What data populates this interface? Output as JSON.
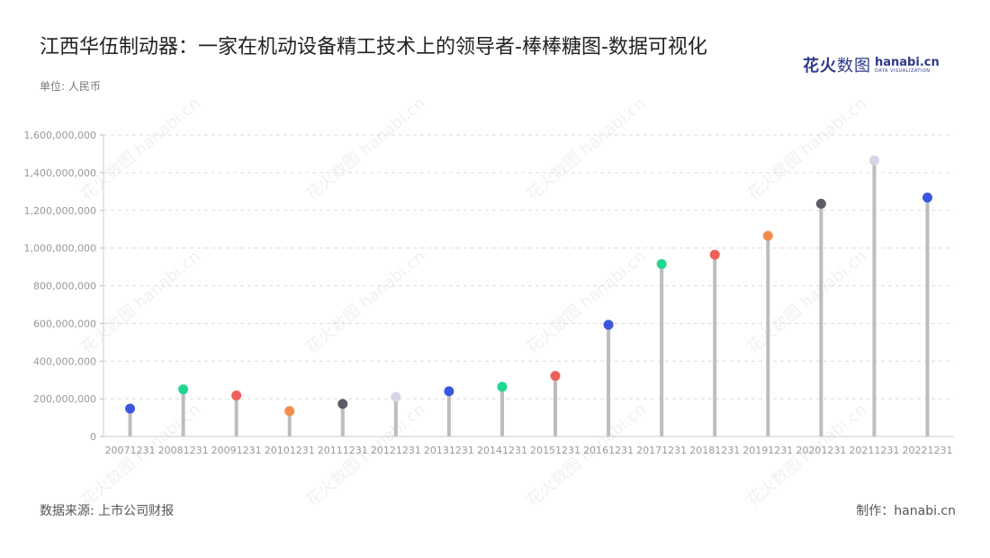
{
  "title": "江西华伍制动器：一家在机动设备精工技术上的领导者-棒棒糖图-数据可视化",
  "unit_label": "单位: 人民币",
  "source_label": "数据来源: 上市公司财报",
  "credit_label": "制作：hanabi.cn",
  "logo": {
    "cn_bold": "花火",
    "cn_light": "数图",
    "en": "hanabi.cn",
    "en_sub": "DATA VISUALIZATION"
  },
  "watermark_text": "花火数图 hanabi.cn",
  "colors": {
    "stem": "#bdbdbd",
    "grid": "#dcdcdc",
    "axis_text": "#999999"
  },
  "chart_data": {
    "type": "lollipop",
    "title": "江西华伍制动器：一家在机动设备精工技术上的领导者-棒棒糖图-数据可视化",
    "ylabel": "单位: 人民币",
    "ylim": [
      0,
      1600000000
    ],
    "yticks": [
      0,
      200000000,
      400000000,
      600000000,
      800000000,
      1000000000,
      1200000000,
      1400000000,
      1600000000
    ],
    "grid": true,
    "categories": [
      "20071231",
      "20081231",
      "20091231",
      "20101231",
      "20111231",
      "20121231",
      "20131231",
      "20141231",
      "20151231",
      "20161231",
      "20171231",
      "20181231",
      "20191231",
      "20201231",
      "20211231",
      "20221231"
    ],
    "values": [
      148000000,
      250000000,
      218000000,
      135000000,
      173000000,
      210000000,
      240000000,
      264000000,
      322000000,
      593000000,
      915000000,
      965000000,
      1065000000,
      1235000000,
      1465000000,
      1268000000
    ],
    "point_colors": [
      "#3b57e0",
      "#1fd890",
      "#f0605a",
      "#f28c4e",
      "#5c5c66",
      "#d4d6e6",
      "#3b57e0",
      "#1fd890",
      "#f0605a",
      "#3b57e0",
      "#1fd890",
      "#f0605a",
      "#f28c4e",
      "#5c5c66",
      "#d4d6e6",
      "#3b57e0"
    ]
  }
}
